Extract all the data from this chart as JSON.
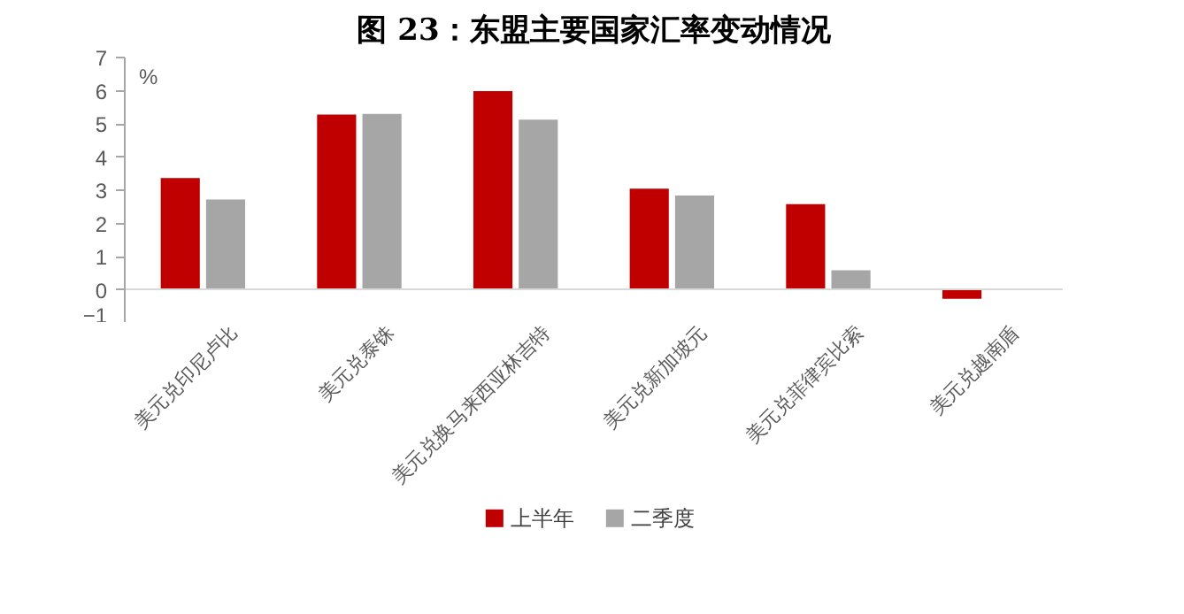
{
  "chart_data": {
    "type": "bar",
    "title": "图 23：东盟主要国家汇率变动情况",
    "categories": [
      "美元兑印尼卢比",
      "美元兑泰铢",
      "美元兑换马来西亚林吉特",
      "美元兑新加坡元",
      "美元兑菲律宾比索",
      "美元兑越南盾"
    ],
    "series": [
      {
        "name": "上半年",
        "color": "#c00000",
        "values": [
          3.37,
          5.28,
          5.99,
          3.05,
          2.58,
          -0.27
        ]
      },
      {
        "name": "二季度",
        "color": "#a6a6a6",
        "values": [
          2.72,
          5.3,
          5.13,
          2.84,
          0.59,
          0
        ]
      }
    ],
    "ylim": [
      -1,
      7
    ],
    "yticks": [
      -1,
      0,
      1,
      2,
      3,
      4,
      5,
      6,
      7
    ],
    "annotations": [
      "%"
    ],
    "legend": "bottom",
    "grid": false
  }
}
